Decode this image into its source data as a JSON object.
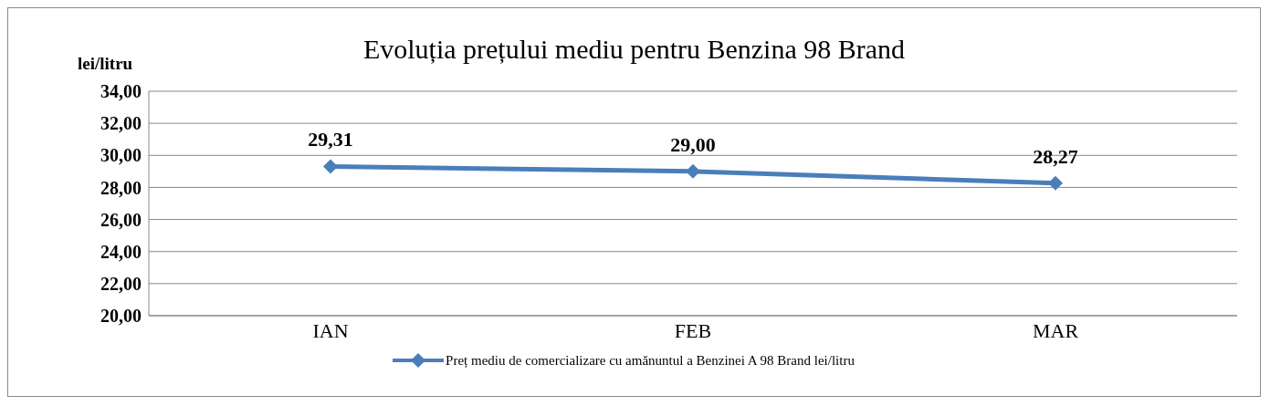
{
  "chart_data": {
    "type": "line",
    "title": "Evoluția prețului mediu pentru Benzina 98 Brand",
    "ylabel": "lei/litru",
    "categories": [
      "IAN",
      "FEB",
      "MAR"
    ],
    "series": [
      {
        "name": "Preț mediu de comercializare cu amănuntul a Benzinei A 98 Brand lei/litru",
        "color": "#4a7ebb",
        "values": [
          29.31,
          29.0,
          28.27
        ],
        "value_labels": [
          "29,31",
          "29,00",
          "28,27"
        ]
      }
    ],
    "ylim": [
      20,
      34
    ],
    "yticks": [
      {
        "value": 20,
        "label": "20,00"
      },
      {
        "value": 22,
        "label": "22,00"
      },
      {
        "value": 24,
        "label": "24,00"
      },
      {
        "value": 26,
        "label": "26,00"
      },
      {
        "value": 28,
        "label": "28,00"
      },
      {
        "value": 30,
        "label": "30,00"
      },
      {
        "value": 32,
        "label": "32,00"
      },
      {
        "value": 34,
        "label": "34,00"
      }
    ],
    "grid": "y",
    "legend": "bottom",
    "marker": "diamond",
    "line_style": "solid"
  }
}
